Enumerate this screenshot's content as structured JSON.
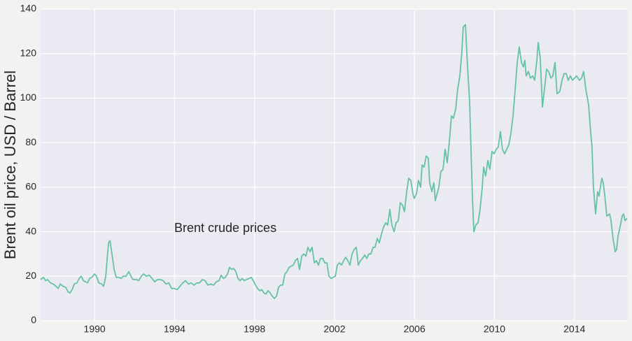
{
  "chart_data": {
    "type": "line",
    "ylabel": "Brent oil price, USD / Barrel",
    "annotation": "Brent crude prices",
    "color": "#66c2a5",
    "grid": true,
    "xlim": [
      1987.3,
      2016.67
    ],
    "xticks": [
      1990,
      1994,
      1998,
      2002,
      2006,
      2010,
      2014
    ],
    "ylim": [
      0,
      140
    ],
    "yticks": [
      0,
      20,
      40,
      60,
      80,
      100,
      120,
      140
    ],
    "x": [
      1987.3,
      1987.44,
      1987.55,
      1987.65,
      1987.79,
      1987.93,
      1988.07,
      1988.18,
      1988.28,
      1988.42,
      1988.56,
      1988.67,
      1988.77,
      1988.88,
      1988.98,
      1989.12,
      1989.23,
      1989.33,
      1989.44,
      1989.54,
      1989.65,
      1989.75,
      1989.86,
      1990.0,
      1990.1,
      1990.21,
      1990.35,
      1990.45,
      1990.56,
      1990.63,
      1990.7,
      1990.77,
      1990.87,
      1990.98,
      1991.08,
      1991.22,
      1991.33,
      1991.43,
      1991.57,
      1991.71,
      1991.82,
      1991.92,
      1992.1,
      1992.2,
      1992.34,
      1992.45,
      1992.59,
      1992.73,
      1992.87,
      1993.01,
      1993.15,
      1993.29,
      1993.43,
      1993.57,
      1993.71,
      1993.85,
      1993.99,
      1994.13,
      1994.27,
      1994.41,
      1994.55,
      1994.69,
      1994.83,
      1994.97,
      1995.11,
      1995.25,
      1995.39,
      1995.53,
      1995.67,
      1995.81,
      1995.95,
      1996.09,
      1996.23,
      1996.33,
      1996.44,
      1996.54,
      1996.65,
      1996.75,
      1996.86,
      1996.96,
      1997.07,
      1997.17,
      1997.28,
      1997.38,
      1997.49,
      1997.59,
      1997.73,
      1997.84,
      1997.94,
      1998.05,
      1998.15,
      1998.26,
      1998.36,
      1998.47,
      1998.57,
      1998.68,
      1998.78,
      1998.89,
      1998.99,
      1999.1,
      1999.2,
      1999.31,
      1999.41,
      1999.52,
      1999.62,
      1999.73,
      1999.83,
      1999.94,
      2000.04,
      2000.15,
      2000.25,
      2000.36,
      2000.46,
      2000.57,
      2000.67,
      2000.78,
      2000.88,
      2000.99,
      2001.09,
      2001.2,
      2001.3,
      2001.41,
      2001.51,
      2001.62,
      2001.72,
      2001.83,
      2001.93,
      2002.04,
      2002.14,
      2002.25,
      2002.35,
      2002.46,
      2002.56,
      2002.67,
      2002.77,
      2002.88,
      2002.98,
      2003.09,
      2003.19,
      2003.3,
      2003.4,
      2003.51,
      2003.61,
      2003.72,
      2003.82,
      2003.93,
      2004.03,
      2004.14,
      2004.24,
      2004.35,
      2004.45,
      2004.56,
      2004.66,
      2004.77,
      2004.87,
      2004.98,
      2005.08,
      2005.19,
      2005.29,
      2005.4,
      2005.5,
      2005.61,
      2005.71,
      2005.82,
      2005.92,
      2005.99,
      2006.1,
      2006.2,
      2006.31,
      2006.38,
      2006.48,
      2006.59,
      2006.69,
      2006.76,
      2006.87,
      2006.97,
      2007.04,
      2007.22,
      2007.32,
      2007.43,
      2007.53,
      2007.64,
      2007.74,
      2007.85,
      2007.95,
      2008.06,
      2008.16,
      2008.27,
      2008.37,
      2008.44,
      2008.55,
      2008.65,
      2008.76,
      2008.83,
      2008.9,
      2008.97,
      2009.07,
      2009.18,
      2009.28,
      2009.39,
      2009.46,
      2009.56,
      2009.67,
      2009.77,
      2009.88,
      2009.98,
      2010.09,
      2010.19,
      2010.3,
      2010.4,
      2010.51,
      2010.61,
      2010.72,
      2010.82,
      2010.93,
      2011.03,
      2011.14,
      2011.24,
      2011.35,
      2011.45,
      2011.52,
      2011.59,
      2011.7,
      2011.8,
      2011.91,
      2012.01,
      2012.12,
      2012.19,
      2012.29,
      2012.4,
      2012.5,
      2012.61,
      2012.71,
      2012.82,
      2012.92,
      2013.03,
      2013.13,
      2013.27,
      2013.38,
      2013.48,
      2013.59,
      2013.69,
      2013.8,
      2013.9,
      2014.01,
      2014.11,
      2014.25,
      2014.36,
      2014.46,
      2014.57,
      2014.71,
      2014.81,
      2014.88,
      2014.95,
      2015.06,
      2015.16,
      2015.23,
      2015.37,
      2015.44,
      2015.51,
      2015.62,
      2015.76,
      2015.83,
      2015.93,
      2016.04,
      2016.11,
      2016.18,
      2016.28,
      2016.39,
      2016.46,
      2016.53,
      2016.63
    ],
    "values": [
      18.5,
      19.5,
      18,
      18.5,
      17,
      16.5,
      15.5,
      14.5,
      16.5,
      15.5,
      15,
      13,
      12.5,
      14,
      16.5,
      17,
      19,
      20,
      18,
      17.5,
      17,
      19,
      19.5,
      21,
      20,
      17,
      16.5,
      15.5,
      20,
      28,
      35,
      36,
      30,
      23,
      19.5,
      19.5,
      19,
      20,
      20,
      22,
      20,
      18.5,
      18.5,
      18,
      20,
      21,
      20,
      20.5,
      19,
      17.5,
      18.5,
      18.5,
      18,
      16.5,
      17,
      14.5,
      14.5,
      14,
      15.5,
      17,
      18,
      16.5,
      17,
      16,
      17,
      17,
      18.5,
      18,
      16,
      16.5,
      16,
      17.5,
      18,
      20.5,
      19,
      19.5,
      21,
      24,
      23,
      23.5,
      22,
      19,
      18,
      19,
      18,
      18.5,
      19,
      19.5,
      18,
      16,
      14.5,
      13.5,
      14,
      12.5,
      12,
      13.5,
      12.5,
      11,
      10,
      11,
      15,
      16,
      16,
      21,
      22,
      24,
      24.5,
      25,
      27,
      28,
      23,
      29,
      30,
      29,
      33,
      31,
      33,
      26,
      27,
      25,
      28,
      28,
      26,
      26,
      20,
      19,
      19.5,
      20,
      25,
      26,
      25,
      27,
      28.5,
      27,
      25,
      30,
      32,
      33,
      25,
      27,
      28,
      29.5,
      28,
      30,
      30,
      33,
      33,
      37,
      35,
      39,
      42,
      44,
      43,
      50,
      43,
      40,
      44,
      45,
      53,
      52,
      49,
      58,
      64,
      63,
      57,
      55,
      57,
      63,
      60,
      70,
      69,
      74,
      73,
      62,
      58,
      62,
      54,
      60,
      67,
      68,
      77,
      71,
      80,
      92,
      91,
      95,
      104,
      110,
      121,
      132,
      133,
      115,
      98,
      76,
      55,
      40,
      43,
      44,
      50,
      60,
      69,
      65,
      72,
      68,
      76,
      75,
      77,
      78,
      85,
      77,
      75,
      77,
      79,
      84,
      92,
      103,
      116,
      123,
      116,
      114,
      117,
      110,
      112,
      109,
      110,
      108,
      117,
      125,
      118,
      96,
      104,
      113,
      112,
      109,
      110,
      116,
      102,
      103,
      108,
      111,
      111,
      108,
      110,
      108,
      109,
      110,
      108,
      109,
      112,
      104,
      97,
      85,
      78,
      60,
      48,
      58,
      56,
      64,
      62,
      57,
      47,
      48,
      45,
      37,
      31,
      32,
      38,
      42,
      47,
      48,
      45,
      46
    ]
  }
}
